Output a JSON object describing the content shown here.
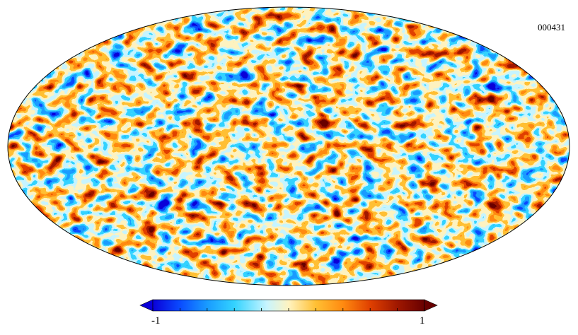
{
  "map": {
    "projection": "mollweide",
    "identifier": "000431",
    "colormap": [
      "#0a00d8",
      "#0a4bff",
      "#199bff",
      "#33d3ff",
      "#c8f5ff",
      "#fff3c0",
      "#ffc034",
      "#ff8a10",
      "#e04000",
      "#a01800",
      "#680000"
    ]
  },
  "colorbar": {
    "min_label": "-1",
    "max_label": "1",
    "min": -1,
    "max": 1,
    "ticks": 10
  }
}
